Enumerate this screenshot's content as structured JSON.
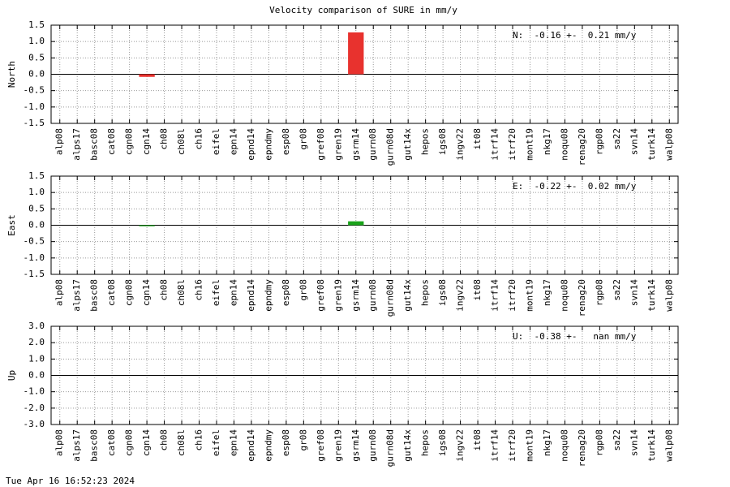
{
  "title": "Velocity comparison of SURE in mm/y",
  "timestamp": "Tue Apr 16 16:52:23 2024",
  "chart_data": [
    {
      "type": "bar",
      "ylabel": "North",
      "annotation": "N:  -0.16 +-  0.21 mm/y",
      "color": "#e8322e",
      "grid": true,
      "categories": [
        "alp08",
        "alps17",
        "basc08",
        "cat08",
        "cgn08",
        "cgn14",
        "ch08",
        "ch08l",
        "ch16",
        "eifel",
        "epn14",
        "epnd14",
        "epndmy",
        "esp08",
        "gr08",
        "gref08",
        "gren19",
        "gsrm14",
        "gurn08",
        "gurn08d",
        "gut14x",
        "hepos",
        "igs08",
        "ingv22",
        "it08",
        "itrf14",
        "itrf20",
        "mont19",
        "nkg17",
        "noqu08",
        "renag20",
        "rgp08",
        "sa22",
        "svn14",
        "turk14",
        "walp08"
      ],
      "values": [
        null,
        null,
        null,
        null,
        null,
        -0.08,
        null,
        null,
        null,
        null,
        null,
        null,
        null,
        null,
        null,
        null,
        null,
        1.28,
        null,
        null,
        null,
        null,
        null,
        null,
        null,
        null,
        null,
        null,
        null,
        null,
        null,
        null,
        null,
        null,
        null,
        null
      ],
      "ylim": [
        -1.5,
        1.5
      ],
      "yticks": [
        1.5,
        {
          "value": 1,
          "label": "1.0"
        },
        0.5,
        {
          "value": 0,
          "label": "0.0"
        },
        -0.5,
        {
          "value": -1,
          "label": "-1.0"
        },
        -1.5
      ]
    },
    {
      "type": "bar",
      "ylabel": "East",
      "annotation": "E:  -0.22 +-  0.02 mm/y",
      "color": "#1aa31a",
      "grid": true,
      "categories": [
        "alp08",
        "alps17",
        "basc08",
        "cat08",
        "cgn08",
        "cgn14",
        "ch08",
        "ch08l",
        "ch16",
        "eifel",
        "epn14",
        "epnd14",
        "epndmy",
        "esp08",
        "gr08",
        "gref08",
        "gren19",
        "gsrm14",
        "gurn08",
        "gurn08d",
        "gut14x",
        "hepos",
        "igs08",
        "ingv22",
        "it08",
        "itrf14",
        "itrf20",
        "mont19",
        "nkg17",
        "noqu08",
        "renag20",
        "rgp08",
        "sa22",
        "svn14",
        "turk14",
        "walp08"
      ],
      "values": [
        null,
        null,
        null,
        null,
        null,
        -0.03,
        null,
        null,
        null,
        null,
        null,
        null,
        null,
        null,
        null,
        null,
        null,
        0.12,
        null,
        null,
        null,
        null,
        null,
        null,
        null,
        null,
        null,
        null,
        null,
        null,
        null,
        null,
        null,
        null,
        null,
        null
      ],
      "ylim": [
        -1.5,
        1.5
      ],
      "yticks": [
        1.5,
        {
          "value": 1,
          "label": "1.0"
        },
        0.5,
        {
          "value": 0,
          "label": "0.0"
        },
        -0.5,
        {
          "value": -1,
          "label": "-1.0"
        },
        -1.5
      ]
    },
    {
      "type": "bar",
      "ylabel": "Up",
      "annotation": "U:  -0.38 +-   nan mm/y",
      "color": "#1a3fd1",
      "grid": true,
      "categories": [
        "alp08",
        "alps17",
        "basc08",
        "cat08",
        "cgn08",
        "cgn14",
        "ch08",
        "ch08l",
        "ch16",
        "eifel",
        "epn14",
        "epnd14",
        "epndmy",
        "esp08",
        "gr08",
        "gref08",
        "gren19",
        "gsrm14",
        "gurn08",
        "gurn08d",
        "gut14x",
        "hepos",
        "igs08",
        "ingv22",
        "it08",
        "itrf14",
        "itrf20",
        "mont19",
        "nkg17",
        "noqu08",
        "renag20",
        "rgp08",
        "sa22",
        "svn14",
        "turk14",
        "walp08"
      ],
      "values": [
        null,
        null,
        null,
        null,
        null,
        null,
        null,
        null,
        null,
        null,
        null,
        null,
        null,
        null,
        null,
        null,
        null,
        null,
        null,
        null,
        null,
        null,
        null,
        null,
        null,
        null,
        null,
        null,
        null,
        null,
        null,
        null,
        null,
        null,
        null,
        null
      ],
      "ylim": [
        -3,
        3
      ],
      "yticks": [
        {
          "value": 3,
          "label": "3.0"
        },
        {
          "value": 2,
          "label": "2.0"
        },
        {
          "value": 1,
          "label": "1.0"
        },
        {
          "value": 0,
          "label": "0.0"
        },
        {
          "value": -1,
          "label": "-1.0"
        },
        {
          "value": -2,
          "label": "-2.0"
        },
        {
          "value": -3,
          "label": "-3.0"
        }
      ]
    }
  ]
}
